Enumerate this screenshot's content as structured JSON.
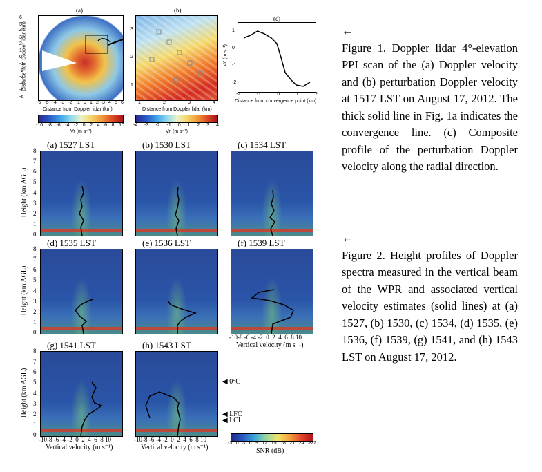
{
  "figure1": {
    "panel_a_label": "(a)",
    "panel_b_label": "(b)",
    "panel_c_label": "(c)",
    "a_xlabel": "Distance from Doppler lidar (km)",
    "a_ylabel": "Distance from Doppler lidar (km)",
    "a_xticks": [
      "-6",
      "-5",
      "-4",
      "-3",
      "-2",
      "-1",
      "0",
      "1",
      "2",
      "3",
      "4",
      "5",
      "6"
    ],
    "a_yticks": [
      "6",
      "5",
      "4",
      "3",
      "2",
      "1",
      "0",
      "-1",
      "-2",
      "-3",
      "-4",
      "-5",
      "-6"
    ],
    "b_xlabel": "Distance from Doppler lidar (km)",
    "b_xticks": [
      "1",
      "2",
      "3",
      "4"
    ],
    "b_yticks": [
      "3",
      "2",
      "1"
    ],
    "c_xlabel": "Distance from convergence point (km)",
    "c_ylabel": "Vr' (m s⁻¹)",
    "c_xticks": [
      "-2",
      "-1",
      "0",
      "1",
      "2"
    ],
    "c_yticks": [
      "1",
      "0",
      "-1",
      "-2"
    ],
    "cbar_a_ticks": [
      "-10",
      "-8",
      "-6",
      "-4",
      "-2",
      "0",
      "2",
      "4",
      "6",
      "8",
      "10"
    ],
    "cbar_a_label": "Vr (m s⁻¹)",
    "cbar_b_ticks": [
      "-4",
      "-3",
      "-2",
      "-1",
      "0",
      "1",
      "2",
      "3",
      "4"
    ],
    "cbar_b_label": "Vr' (m s⁻¹)"
  },
  "figure2": {
    "panels": [
      {
        "title": "(a) 1527 LST"
      },
      {
        "title": "(b) 1530 LST"
      },
      {
        "title": "(c) 1534 LST"
      },
      {
        "title": "(d) 1535 LST"
      },
      {
        "title": "(e) 1536 LST"
      },
      {
        "title": "(f) 1539 LST"
      },
      {
        "title": "(g) 1541 LST"
      },
      {
        "title": "(h) 1543 LST"
      }
    ],
    "ylabel": "Height (km AGL)",
    "xlabel": "Vertical velocity (m s⁻¹)",
    "yticks": [
      "8",
      "7",
      "6",
      "5",
      "4",
      "3",
      "2",
      "1",
      "0"
    ],
    "xticks": "-10-8 -6 -4 -2  0  2  4  6  8 10",
    "markers": [
      "0°C",
      "LFC",
      "LCL"
    ],
    "snr_ticks": [
      "-3",
      "0",
      "3",
      "6",
      "9",
      "12",
      "15",
      "18",
      "21",
      "24",
      ">27"
    ],
    "snr_label": "SNR (dB)"
  },
  "captions": {
    "arrow": "←",
    "fig1": "Figure 1. Doppler lidar 4°-elevation PPI scan of the (a) Doppler velocity and (b) perturbation Doppler velocity at 1517 LST on August 17, 2012. The thick solid line in Fig. 1a indicates the convergence line. (c) Composite profile of the perturbation Doppler velocity along the radial direction.",
    "fig2": "Figure 2. Height profiles of Doppler spectra measured in the vertical beam of the WPR and associated vertical velocity estimates (solid lines) at (a) 1527, (b) 1530, (c) 1534, (d) 1535, (e) 1536, (f) 1539, (g) 1541, and (h) 1543 LST on August 17, 2012."
  }
}
